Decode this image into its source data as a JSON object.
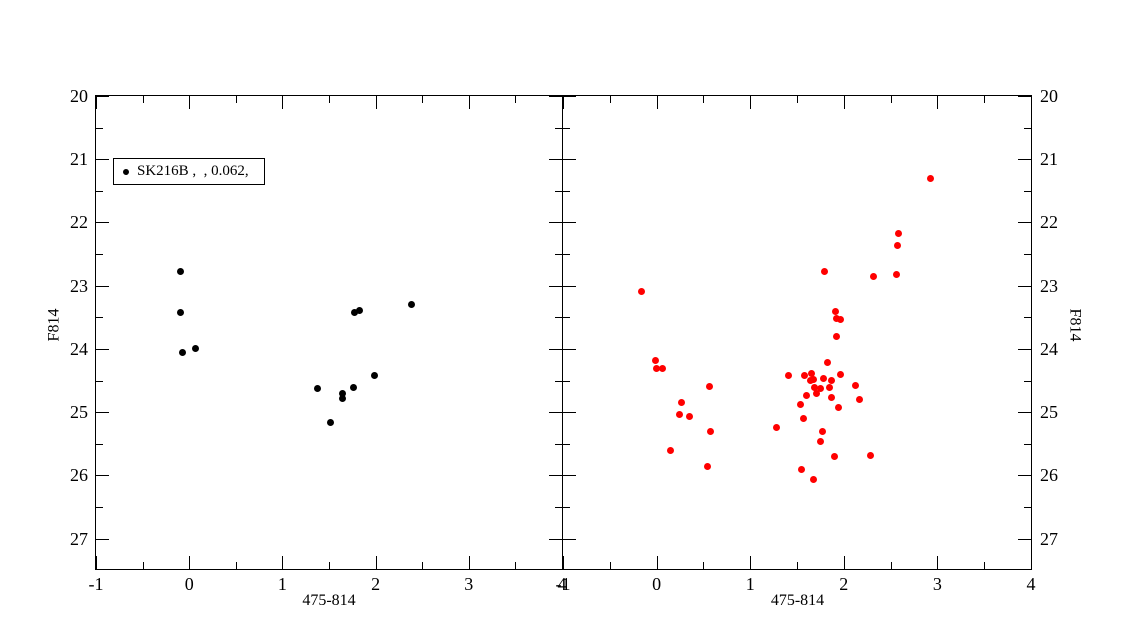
{
  "accent_colors": {
    "left_series": "#000000",
    "right_series": "#ff0000",
    "axis": "#000000",
    "background": "#ffffff"
  },
  "legend": {
    "label": "SK216B ,  , 0.062,",
    "marker": "filled-circle-icon"
  },
  "chart_data": [
    {
      "type": "scatter",
      "panel": "left",
      "title": "",
      "xlabel": "475-814",
      "ylabel": "F814",
      "xlim": [
        -1,
        4
      ],
      "ylim": [
        20,
        27.48
      ],
      "y_inverted": true,
      "grid": false,
      "xticks": [
        -1,
        0,
        1,
        2,
        3,
        4
      ],
      "xtick_labels": [
        "-1",
        "0",
        "1",
        "2",
        "3",
        "4"
      ],
      "xticks_minor": [
        -0.5,
        0.5,
        1.5,
        2.5,
        3.5
      ],
      "yticks": [
        20,
        21,
        22,
        23,
        24,
        25,
        26,
        27
      ],
      "ytick_labels": [
        "20",
        "21",
        "22",
        "23",
        "24",
        "25",
        "26",
        "27"
      ],
      "yticks_minor": [
        20.5,
        21.5,
        22.5,
        23.5,
        24.5,
        25.5,
        26.5
      ],
      "ylabels_side": "left",
      "legend_position": "upper-left-inside",
      "series": [
        {
          "name": "SK216B ,  , 0.062,",
          "color": "#000000",
          "points": [
            [
              -0.09,
              22.77
            ],
            [
              -0.09,
              23.43
            ],
            [
              -0.07,
              24.05
            ],
            [
              0.07,
              24.0
            ],
            [
              1.77,
              23.42
            ],
            [
              1.83,
              23.39
            ],
            [
              2.38,
              23.3
            ],
            [
              1.99,
              24.42
            ],
            [
              1.38,
              24.62
            ],
            [
              1.76,
              24.61
            ],
            [
              1.64,
              24.71
            ],
            [
              1.64,
              24.79
            ],
            [
              1.52,
              25.17
            ]
          ]
        }
      ]
    },
    {
      "type": "scatter",
      "panel": "right",
      "title": "",
      "xlabel": "475-814",
      "ylabel": "F814",
      "xlim": [
        -1,
        4
      ],
      "ylim": [
        20,
        27.48
      ],
      "y_inverted": true,
      "grid": false,
      "xticks": [
        -1,
        0,
        1,
        2,
        3,
        4
      ],
      "xtick_labels": [
        "-1",
        "0",
        "1",
        "2",
        "3",
        "4"
      ],
      "xticks_minor": [
        -0.5,
        0.5,
        1.5,
        2.5,
        3.5
      ],
      "yticks": [
        20,
        21,
        22,
        23,
        24,
        25,
        26,
        27
      ],
      "ytick_labels": [
        "20",
        "21",
        "22",
        "23",
        "24",
        "25",
        "26",
        "27"
      ],
      "yticks_minor": [
        20.5,
        21.5,
        22.5,
        23.5,
        24.5,
        25.5,
        26.5
      ],
      "ylabels_side": "right",
      "legend_position": "none",
      "series": [
        {
          "name": "",
          "color": "#ff0000",
          "points": [
            [
              -0.16,
              23.09
            ],
            [
              -0.01,
              24.19
            ],
            [
              0.0,
              24.31
            ],
            [
              0.06,
              24.31
            ],
            [
              0.56,
              24.59
            ],
            [
              0.27,
              24.85
            ],
            [
              0.24,
              25.03
            ],
            [
              0.35,
              25.07
            ],
            [
              0.58,
              25.31
            ],
            [
              0.15,
              25.61
            ],
            [
              0.54,
              25.86
            ],
            [
              2.93,
              21.31
            ],
            [
              2.58,
              22.18
            ],
            [
              2.57,
              22.37
            ],
            [
              1.79,
              22.78
            ],
            [
              2.32,
              22.86
            ],
            [
              2.56,
              22.83
            ],
            [
              1.91,
              23.4
            ],
            [
              1.92,
              23.52
            ],
            [
              1.97,
              23.53
            ],
            [
              1.92,
              23.81
            ],
            [
              1.83,
              24.22
            ],
            [
              1.41,
              24.42
            ],
            [
              1.58,
              24.42
            ],
            [
              1.65,
              24.39
            ],
            [
              1.68,
              24.48
            ],
            [
              1.64,
              24.5
            ],
            [
              1.78,
              24.47
            ],
            [
              1.87,
              24.5
            ],
            [
              1.96,
              24.41
            ],
            [
              1.69,
              24.61
            ],
            [
              1.75,
              24.62
            ],
            [
              1.85,
              24.61
            ],
            [
              2.12,
              24.58
            ],
            [
              1.6,
              24.74
            ],
            [
              1.71,
              24.71
            ],
            [
              1.87,
              24.76
            ],
            [
              2.17,
              24.8
            ],
            [
              1.54,
              24.88
            ],
            [
              1.94,
              24.93
            ],
            [
              1.57,
              25.1
            ],
            [
              1.28,
              25.25
            ],
            [
              1.77,
              25.3
            ],
            [
              1.75,
              25.47
            ],
            [
              1.9,
              25.7
            ],
            [
              2.29,
              25.68
            ],
            [
              1.55,
              25.91
            ],
            [
              1.68,
              26.07
            ]
          ]
        }
      ]
    }
  ]
}
